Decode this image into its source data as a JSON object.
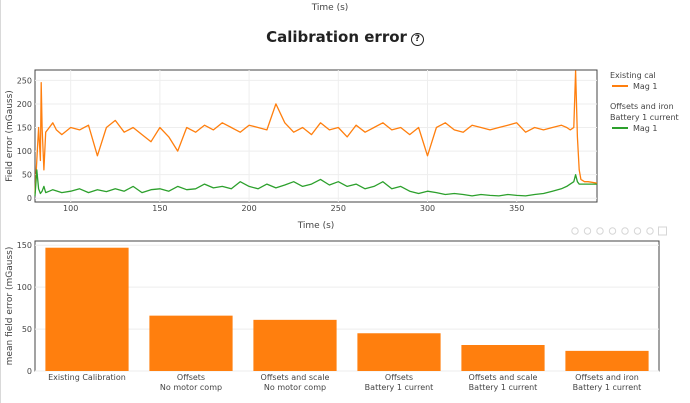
{
  "page": {
    "top_axis_title": "Time (s)",
    "title": "Calibration error",
    "help_glyph": "?"
  },
  "legend": {
    "groups": [
      {
        "title": "Existing cal",
        "items": [
          {
            "label": "Mag 1",
            "color": "#ff7f0e"
          }
        ]
      },
      {
        "title": "Offsets and iron\nBattery 1 current",
        "items": [
          {
            "label": "Mag 1",
            "color": "#2ca02c"
          }
        ]
      }
    ]
  },
  "modebar": {
    "icons": [
      "camera-icon",
      "zoom-icon",
      "pan-icon",
      "zoom-in-icon",
      "zoom-out-icon",
      "autoscale-icon",
      "reset-icon",
      "plotly-logo-icon"
    ]
  },
  "chart_data": [
    {
      "type": "line",
      "xlabel": "Time (s)",
      "ylabel": "Field error (mGauss)",
      "xlim": [
        80,
        395
      ],
      "ylim": [
        -8,
        272
      ],
      "xticks": [
        100,
        150,
        200,
        250,
        300,
        350
      ],
      "yticks": [
        0,
        50,
        100,
        150,
        200,
        250
      ],
      "grid": true,
      "legend_position": "right",
      "series": [
        {
          "name": "Existing cal",
          "legend_item": "Mag 1",
          "color": "#ff7f0e",
          "x": [
            80,
            81,
            82,
            83,
            83.5,
            84,
            85,
            86,
            88,
            90,
            92,
            95,
            100,
            105,
            110,
            115,
            120,
            125,
            130,
            135,
            140,
            145,
            150,
            155,
            160,
            165,
            170,
            175,
            180,
            185,
            190,
            195,
            200,
            205,
            210,
            215,
            220,
            225,
            230,
            235,
            240,
            245,
            250,
            255,
            260,
            265,
            270,
            275,
            280,
            285,
            290,
            295,
            300,
            305,
            310,
            315,
            320,
            325,
            330,
            335,
            340,
            345,
            350,
            355,
            360,
            365,
            370,
            375,
            378,
            380,
            382,
            383,
            384,
            385,
            386,
            388,
            390,
            395
          ],
          "y": [
            10,
            80,
            150,
            80,
            245,
            150,
            60,
            140,
            150,
            160,
            145,
            135,
            150,
            145,
            155,
            90,
            150,
            165,
            140,
            150,
            135,
            120,
            150,
            130,
            100,
            150,
            140,
            155,
            145,
            160,
            150,
            140,
            155,
            150,
            145,
            200,
            160,
            140,
            150,
            135,
            160,
            145,
            150,
            130,
            155,
            140,
            150,
            160,
            145,
            150,
            135,
            150,
            90,
            150,
            160,
            145,
            140,
            155,
            150,
            145,
            150,
            155,
            160,
            140,
            150,
            145,
            150,
            155,
            150,
            145,
            150,
            270,
            130,
            60,
            40,
            35,
            35,
            32
          ]
        },
        {
          "name": "Offsets and iron\nBattery 1 current",
          "legend_item": "Mag 1",
          "color": "#2ca02c",
          "x": [
            80,
            81,
            82,
            83,
            84,
            85,
            86,
            88,
            90,
            95,
            100,
            105,
            110,
            115,
            120,
            125,
            130,
            135,
            140,
            145,
            150,
            155,
            160,
            165,
            170,
            175,
            180,
            185,
            190,
            195,
            200,
            205,
            210,
            215,
            220,
            225,
            230,
            235,
            240,
            245,
            250,
            255,
            260,
            265,
            270,
            275,
            280,
            285,
            290,
            295,
            300,
            305,
            310,
            315,
            320,
            325,
            330,
            335,
            340,
            345,
            350,
            355,
            360,
            365,
            370,
            375,
            378,
            380,
            382,
            383,
            384,
            385,
            386,
            388,
            390,
            395
          ],
          "y": [
            5,
            60,
            20,
            10,
            15,
            25,
            12,
            15,
            18,
            12,
            15,
            20,
            12,
            18,
            14,
            20,
            15,
            25,
            12,
            18,
            20,
            15,
            25,
            18,
            20,
            30,
            22,
            25,
            20,
            35,
            25,
            20,
            30,
            22,
            28,
            35,
            25,
            30,
            40,
            28,
            35,
            25,
            30,
            20,
            25,
            35,
            20,
            25,
            15,
            10,
            15,
            12,
            8,
            10,
            8,
            5,
            8,
            6,
            5,
            8,
            6,
            5,
            8,
            10,
            15,
            20,
            25,
            30,
            35,
            50,
            35,
            30,
            30,
            30,
            30,
            30
          ]
        }
      ]
    },
    {
      "type": "bar",
      "xlabel": "",
      "ylabel": "mean field error (mGauss)",
      "ylim": [
        0,
        155
      ],
      "yticks": [
        0,
        50,
        100,
        150
      ],
      "grid": true,
      "color": "#ff7f0e",
      "categories": [
        [
          "Existing Calibration"
        ],
        [
          "Offsets",
          "No motor comp"
        ],
        [
          "Offsets and scale",
          "No motor comp"
        ],
        [
          "Offsets",
          "Battery 1 current"
        ],
        [
          "Offsets and scale",
          "Battery 1 current"
        ],
        [
          "Offsets and iron",
          "Battery 1 current"
        ]
      ],
      "values": [
        147,
        66,
        61,
        45,
        31,
        24
      ]
    }
  ]
}
